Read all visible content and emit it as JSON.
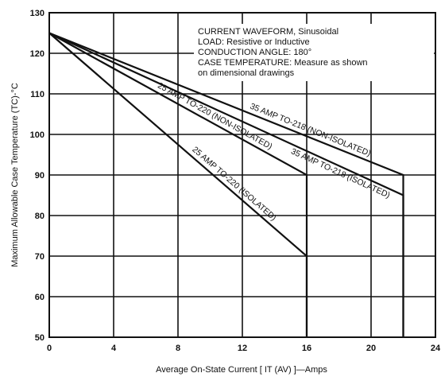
{
  "chart_data": {
    "type": "line",
    "xlabel": "Average On-State Current [ IT (AV) ]—Amps",
    "ylabel": "Maximum Allowable Case Temperature (TC)-°C",
    "xlim": [
      0,
      24
    ],
    "ylim": [
      50,
      130
    ],
    "xticks": [
      0,
      4,
      8,
      12,
      16,
      20,
      24
    ],
    "yticks": [
      50,
      60,
      70,
      80,
      90,
      100,
      110,
      120,
      130
    ],
    "grid": true,
    "notes": [
      "CURRENT WAVEFORM, Sinusoidal",
      "LOAD: Resistive or Inductive",
      "CONDUCTION ANGLE: 180°",
      "CASE TEMPERATURE: Measure as shown",
      "on dimensional drawings"
    ],
    "series": [
      {
        "name": "35 AMP TO-218 (NON-ISOLATED)",
        "x": [
          0,
          22
        ],
        "y": [
          125,
          90
        ],
        "drop_to": 50
      },
      {
        "name": "35 AMP TO-218 (ISOLATED)",
        "x": [
          0,
          22
        ],
        "y": [
          125,
          85
        ],
        "drop_to": 50
      },
      {
        "name": "25 AMP TO-220 (NON-ISOLATED)",
        "x": [
          0,
          16
        ],
        "y": [
          125,
          90
        ],
        "drop_to": 50
      },
      {
        "name": "25 AMP TO-220 (ISOLATED)",
        "x": [
          0,
          16
        ],
        "y": [
          125,
          70
        ],
        "drop_to": 50
      }
    ]
  }
}
